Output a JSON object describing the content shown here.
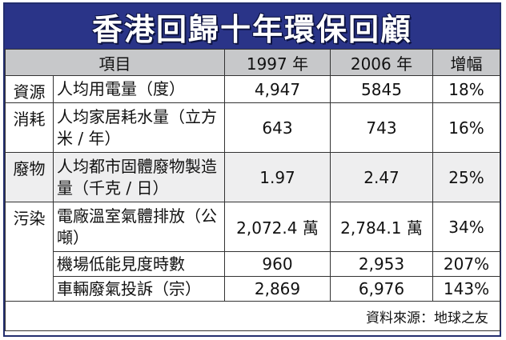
{
  "title": "香港回歸十年環保回顧",
  "header": {
    "item": "項目",
    "year1997": "1997 年",
    "year2006": "2006 年",
    "growth": "增幅"
  },
  "groups": [
    {
      "category": "資源",
      "rows": [
        {
          "item": "人均用電量（度）",
          "v1997": "4,947",
          "v2006": "5845",
          "growth": "18%"
        }
      ]
    },
    {
      "category": "消耗",
      "rows": [
        {
          "item": "人均家居耗水量（立方米 / 年）",
          "v1997": "643",
          "v2006": "743",
          "growth": "16%"
        }
      ]
    },
    {
      "category": "廢物",
      "rows": [
        {
          "item": "人均都市固體廢物製造量（千克 / 日）",
          "v1997": "1.97",
          "v2006": "2.47",
          "growth": "25%"
        }
      ]
    },
    {
      "category": "污染",
      "rows": [
        {
          "item": "電廠溫室氣體排放（公噸）",
          "v1997": "2,072.4 萬",
          "v2006": "2,784.1 萬",
          "growth": "34%"
        },
        {
          "item": "機場低能見度時數",
          "v1997": "960",
          "v2006": "2,953",
          "growth": "207%"
        },
        {
          "item": "車輛廢氣投訴（宗）",
          "v1997": "2,869",
          "v2006": "6,976",
          "growth": "143%"
        }
      ]
    }
  ],
  "source": "資料來源：地球之友"
}
